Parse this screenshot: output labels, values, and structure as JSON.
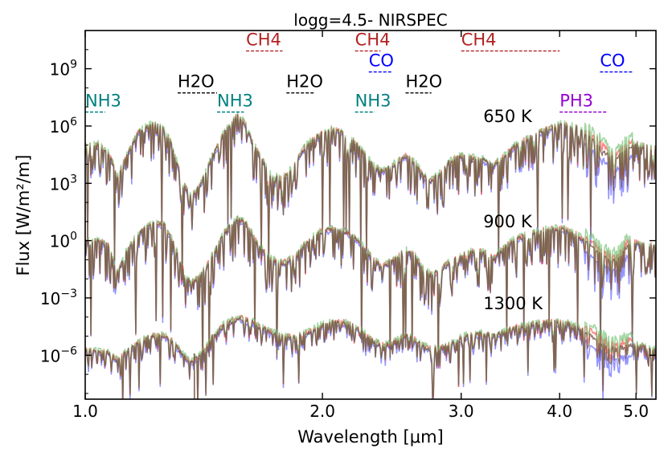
{
  "chart_data": {
    "type": "line",
    "title": "logg=4.5- NIRSPEC",
    "xlabel": "Wavelength [μm]",
    "ylabel": "Flux [W/m²/m]",
    "x_scale": "log",
    "y_scale": "log",
    "xlim": [
      1.0,
      5.3
    ],
    "ylim_log10": [
      -8.3,
      11.0
    ],
    "x_ticks": [
      {
        "value": 1.0,
        "label": "1.0"
      },
      {
        "value": 2.0,
        "label": "2.0"
      },
      {
        "value": 3.0,
        "label": "3.0"
      },
      {
        "value": 4.0,
        "label": "4.0"
      },
      {
        "value": 5.0,
        "label": "5.0"
      }
    ],
    "y_ticks": [
      {
        "exp": 9,
        "label": "9"
      },
      {
        "exp": 6,
        "label": "6"
      },
      {
        "exp": 3,
        "label": "3"
      },
      {
        "exp": 0,
        "label": "0"
      },
      {
        "exp": -3,
        "label": "−3"
      },
      {
        "exp": -6,
        "label": "−6"
      }
    ],
    "y_tick_base": "10",
    "series_colors": [
      "#4d4dff",
      "#ff3333",
      "#66bb66",
      "#7a5a4a"
    ],
    "temperature_sets": [
      {
        "label": "650 K",
        "label_x": 3.2,
        "label_log": 6.2,
        "points": [
          [
            1.0,
            4.9
          ],
          [
            1.04,
            5.0
          ],
          [
            1.07,
            4.6
          ],
          [
            1.1,
            3.3
          ],
          [
            1.13,
            4.5
          ],
          [
            1.17,
            5.7
          ],
          [
            1.22,
            6.1
          ],
          [
            1.26,
            5.8
          ],
          [
            1.29,
            4.9
          ],
          [
            1.33,
            3.0
          ],
          [
            1.36,
            2.3
          ],
          [
            1.4,
            2.9
          ],
          [
            1.45,
            4.4
          ],
          [
            1.5,
            5.6
          ],
          [
            1.56,
            6.5
          ],
          [
            1.59,
            6.2
          ],
          [
            1.62,
            5.4
          ],
          [
            1.66,
            4.5
          ],
          [
            1.72,
            3.4
          ],
          [
            1.78,
            3.2
          ],
          [
            1.84,
            3.9
          ],
          [
            1.9,
            4.9
          ],
          [
            1.98,
            5.5
          ],
          [
            2.06,
            5.8
          ],
          [
            2.13,
            5.6
          ],
          [
            2.2,
            5.1
          ],
          [
            2.26,
            4.5
          ],
          [
            2.32,
            3.9
          ],
          [
            2.38,
            3.6
          ],
          [
            2.45,
            3.9
          ],
          [
            2.55,
            4.4
          ],
          [
            2.62,
            4.1
          ],
          [
            2.68,
            3.4
          ],
          [
            2.74,
            3.1
          ],
          [
            2.82,
            3.5
          ],
          [
            2.9,
            4.1
          ],
          [
            3.0,
            4.4
          ],
          [
            3.1,
            4.3
          ],
          [
            3.2,
            4.2
          ],
          [
            3.3,
            3.9
          ],
          [
            3.4,
            4.4
          ],
          [
            3.5,
            4.9
          ],
          [
            3.7,
            5.5
          ],
          [
            3.9,
            5.9
          ],
          [
            4.05,
            6.1
          ],
          [
            4.2,
            5.9
          ],
          [
            4.35,
            5.4
          ],
          [
            4.5,
            4.9
          ],
          [
            4.62,
            4.4
          ],
          [
            4.72,
            4.2
          ],
          [
            4.85,
            4.8
          ],
          [
            5.0,
            5.0
          ],
          [
            5.15,
            4.9
          ],
          [
            5.3,
            4.8
          ]
        ]
      },
      {
        "label": "900 K",
        "label_x": 3.2,
        "label_log": 0.7,
        "points": [
          [
            1.0,
            -0.1
          ],
          [
            1.04,
            0.0
          ],
          [
            1.07,
            -0.3
          ],
          [
            1.1,
            -1.7
          ],
          [
            1.13,
            -0.5
          ],
          [
            1.17,
            0.4
          ],
          [
            1.22,
            0.9
          ],
          [
            1.26,
            0.8
          ],
          [
            1.29,
            0.0
          ],
          [
            1.33,
            -1.5
          ],
          [
            1.36,
            -2.3
          ],
          [
            1.4,
            -1.9
          ],
          [
            1.45,
            -0.8
          ],
          [
            1.5,
            0.4
          ],
          [
            1.56,
            1.1
          ],
          [
            1.59,
            1.0
          ],
          [
            1.62,
            0.5
          ],
          [
            1.66,
            -0.3
          ],
          [
            1.72,
            -1.0
          ],
          [
            1.78,
            -1.2
          ],
          [
            1.84,
            -0.9
          ],
          [
            1.9,
            -0.2
          ],
          [
            1.98,
            0.4
          ],
          [
            2.06,
            0.6
          ],
          [
            2.13,
            0.5
          ],
          [
            2.2,
            0.1
          ],
          [
            2.26,
            -0.4
          ],
          [
            2.32,
            -1.0
          ],
          [
            2.38,
            -1.4
          ],
          [
            2.45,
            -1.1
          ],
          [
            2.55,
            -0.5
          ],
          [
            2.62,
            -0.8
          ],
          [
            2.68,
            -1.5
          ],
          [
            2.74,
            -1.8
          ],
          [
            2.82,
            -1.6
          ],
          [
            2.9,
            -1.1
          ],
          [
            3.0,
            -0.8
          ],
          [
            3.1,
            -0.6
          ],
          [
            3.2,
            -0.6
          ],
          [
            3.3,
            -0.9
          ],
          [
            3.4,
            -0.4
          ],
          [
            3.5,
            0.0
          ],
          [
            3.7,
            0.4
          ],
          [
            3.9,
            0.6
          ],
          [
            4.05,
            0.6
          ],
          [
            4.2,
            0.3
          ],
          [
            4.35,
            -0.2
          ],
          [
            4.5,
            -0.7
          ],
          [
            4.62,
            -1.0
          ],
          [
            4.72,
            -1.1
          ],
          [
            4.85,
            -0.4
          ],
          [
            5.0,
            -0.1
          ],
          [
            5.15,
            -0.2
          ],
          [
            5.3,
            -0.4
          ]
        ]
      },
      {
        "label": "1300 K",
        "label_x": 3.2,
        "label_log": -3.6,
        "points": [
          [
            1.0,
            -5.8
          ],
          [
            1.04,
            -5.8
          ],
          [
            1.07,
            -5.9
          ],
          [
            1.1,
            -6.3
          ],
          [
            1.13,
            -5.8
          ],
          [
            1.17,
            -5.3
          ],
          [
            1.22,
            -5.0
          ],
          [
            1.26,
            -5.0
          ],
          [
            1.29,
            -5.3
          ],
          [
            1.33,
            -6.0
          ],
          [
            1.36,
            -6.4
          ],
          [
            1.4,
            -6.0
          ],
          [
            1.45,
            -5.1
          ],
          [
            1.5,
            -4.4
          ],
          [
            1.56,
            -4.1
          ],
          [
            1.59,
            -4.1
          ],
          [
            1.62,
            -4.2
          ],
          [
            1.66,
            -4.5
          ],
          [
            1.72,
            -4.8
          ],
          [
            1.78,
            -5.0
          ],
          [
            1.84,
            -5.1
          ],
          [
            1.9,
            -4.9
          ],
          [
            1.98,
            -4.5
          ],
          [
            2.06,
            -4.3
          ],
          [
            2.13,
            -4.3
          ],
          [
            2.2,
            -4.5
          ],
          [
            2.26,
            -4.9
          ],
          [
            2.32,
            -5.3
          ],
          [
            2.38,
            -5.5
          ],
          [
            2.45,
            -5.4
          ],
          [
            2.55,
            -5.0
          ],
          [
            2.62,
            -5.2
          ],
          [
            2.68,
            -5.5
          ],
          [
            2.74,
            -5.7
          ],
          [
            2.82,
            -5.7
          ],
          [
            2.9,
            -5.4
          ],
          [
            3.0,
            -5.1
          ],
          [
            3.1,
            -4.9
          ],
          [
            3.2,
            -4.9
          ],
          [
            3.3,
            -5.0
          ],
          [
            3.4,
            -4.8
          ],
          [
            3.5,
            -4.6
          ],
          [
            3.7,
            -4.4
          ],
          [
            3.9,
            -4.3
          ],
          [
            4.05,
            -4.3
          ],
          [
            4.2,
            -4.5
          ],
          [
            4.35,
            -4.9
          ],
          [
            4.5,
            -5.3
          ],
          [
            4.62,
            -5.6
          ],
          [
            4.72,
            -5.7
          ],
          [
            4.85,
            -5.5
          ],
          [
            5.0,
            -5.5
          ],
          [
            5.15,
            -5.6
          ],
          [
            5.3,
            -5.7
          ]
        ]
      }
    ],
    "absorption_bands": [
      {
        "label": "CH4",
        "color": "#b22222",
        "x_start": 1.6,
        "x_end": 1.78,
        "label_log": 10.1
      },
      {
        "label": "CH4",
        "color": "#b22222",
        "x_start": 2.2,
        "x_end": 2.37,
        "label_log": 10.1
      },
      {
        "label": "CH4",
        "color": "#b22222",
        "x_start": 3.0,
        "x_end": 4.0,
        "label_log": 10.1
      },
      {
        "label": "CO",
        "color": "#0000ff",
        "x_start": 2.29,
        "x_end": 2.45,
        "label_log": 9.0
      },
      {
        "label": "CO",
        "color": "#0000ff",
        "x_start": 4.5,
        "x_end": 4.95,
        "label_log": 9.0
      },
      {
        "label": "H2O",
        "color": "#000000",
        "x_start": 1.31,
        "x_end": 1.47,
        "label_log": 7.9
      },
      {
        "label": "H2O",
        "color": "#000000",
        "x_start": 1.8,
        "x_end": 1.95,
        "label_log": 7.9
      },
      {
        "label": "H2O",
        "color": "#000000",
        "x_start": 2.55,
        "x_end": 2.75,
        "label_log": 7.9
      },
      {
        "label": "NH3",
        "color": "#008080",
        "x_start": 1.0,
        "x_end": 1.06,
        "label_log": 6.9
      },
      {
        "label": "NH3",
        "color": "#008080",
        "x_start": 1.47,
        "x_end": 1.59,
        "label_log": 6.9
      },
      {
        "label": "NH3",
        "color": "#008080",
        "x_start": 2.2,
        "x_end": 2.33,
        "label_log": 6.9
      },
      {
        "label": "PH3",
        "color": "#9400d3",
        "x_start": 4.0,
        "x_end": 4.6,
        "label_log": 6.9
      }
    ]
  }
}
